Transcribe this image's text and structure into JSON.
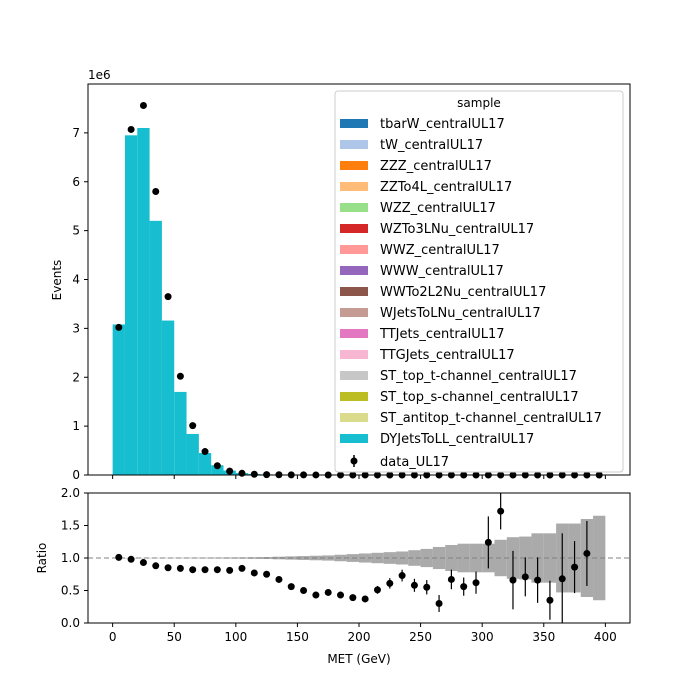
{
  "chart_data": [
    {
      "type": "bar",
      "panel": "main",
      "xlabel": "",
      "ylabel": "Events",
      "offset_label": "1e6",
      "xlim": [
        -20,
        420
      ],
      "ylim": [
        0,
        8
      ],
      "yticks": [
        0,
        1,
        2,
        3,
        4,
        5,
        6,
        7
      ],
      "xticks": [
        0,
        50,
        100,
        150,
        200,
        250,
        300,
        350,
        400
      ],
      "bin_edges": [
        0,
        10,
        20,
        30,
        40,
        50,
        60,
        70,
        80,
        90,
        100,
        110,
        120,
        130,
        140,
        150,
        160,
        170,
        180,
        190,
        200,
        210,
        220,
        230,
        240,
        250,
        260,
        270,
        280,
        290,
        300,
        310,
        320,
        330,
        340,
        350,
        360,
        370,
        380,
        390,
        400
      ],
      "stack_total": [
        3.08,
        6.95,
        7.1,
        5.2,
        3.16,
        1.7,
        0.84,
        0.45,
        0.2,
        0.09,
        0.04,
        0.02,
        0.012,
        0.008,
        0.005,
        0.003,
        0.002,
        0.0015,
        0.001,
        0.0008,
        0.0006,
        0.0005,
        0.0004,
        0.0003,
        0.0002,
        0.0002,
        0.0001,
        0.0001,
        0.0001,
        0.0001,
        0.0001,
        0.0001,
        0.0001,
        0.0001,
        0.0001,
        0.0001,
        0.0001,
        0.0001,
        0.0001,
        0.0001
      ],
      "legend": {
        "title": "sample",
        "placement": "top-right",
        "entries": [
          {
            "name": "tbarW_centralUL17",
            "color": "#1f77b4"
          },
          {
            "name": "tW_centralUL17",
            "color": "#aec7e8"
          },
          {
            "name": "ZZZ_centralUL17",
            "color": "#ff7f0e"
          },
          {
            "name": "ZZTo4L_centralUL17",
            "color": "#ffbb78"
          },
          {
            "name": "WZZ_centralUL17",
            "color": "#98df8a"
          },
          {
            "name": "WZTo3LNu_centralUL17",
            "color": "#d62728"
          },
          {
            "name": "WWZ_centralUL17",
            "color": "#ff9896"
          },
          {
            "name": "WWW_centralUL17",
            "color": "#9467bd"
          },
          {
            "name": "WWTo2L2Nu_centralUL17",
            "color": "#8c564b"
          },
          {
            "name": "WJetsToLNu_centralUL17",
            "color": "#c49c94"
          },
          {
            "name": "TTJets_centralUL17",
            "color": "#e377c2"
          },
          {
            "name": "TTGJets_centralUL17",
            "color": "#f7b6d2"
          },
          {
            "name": "ST_top_t-channel_centralUL17",
            "color": "#c7c7c7"
          },
          {
            "name": "ST_top_s-channel_centralUL17",
            "color": "#bcbd22"
          },
          {
            "name": "ST_antitop_t-channel_centralUL17",
            "color": "#dbdb8d"
          },
          {
            "name": "DYJetsToLL_centralUL17",
            "color": "#17becf"
          }
        ],
        "data_entry": "data_UL17"
      },
      "data_points": {
        "name": "data_UL17",
        "x": [
          5,
          15,
          25,
          35,
          45,
          55,
          65,
          75,
          85,
          95,
          105,
          115,
          125,
          135,
          145,
          155,
          165,
          175,
          185,
          195,
          205,
          215,
          225,
          235,
          245,
          255,
          265,
          275,
          285,
          295,
          305,
          315,
          325,
          335,
          345,
          355,
          365,
          375,
          385,
          395
        ],
        "y": [
          3.02,
          7.07,
          7.56,
          5.8,
          3.65,
          2.02,
          1.01,
          0.48,
          0.19,
          0.08,
          0.035,
          0.015,
          0.008,
          0.005,
          0.003,
          0.002,
          0.001,
          0.0007,
          0.0004,
          0.0003,
          0.0002,
          0.0002,
          0.0002,
          0.0001,
          0.0001,
          0.0001,
          0.0001,
          0.0001,
          0.0001,
          0.0001,
          0.0001,
          0.0001,
          0.0001,
          0.0001,
          0.0001,
          0.0001,
          0.0001,
          0.0001,
          0.0001,
          0.0001
        ]
      }
    },
    {
      "type": "scatter",
      "panel": "ratio",
      "xlabel": "MET (GeV)",
      "ylabel": "Ratio",
      "xlim": [
        -20,
        420
      ],
      "ylim": [
        0,
        2
      ],
      "yticks": [
        "0.0",
        "0.5",
        "1.0",
        "1.5",
        "2.0"
      ],
      "xticks": [
        "0",
        "50",
        "100",
        "150",
        "200",
        "250",
        "300",
        "350",
        "400"
      ],
      "reference_line": 1,
      "bin_edges": [
        0,
        10,
        20,
        30,
        40,
        50,
        60,
        70,
        80,
        90,
        100,
        110,
        120,
        130,
        140,
        150,
        160,
        170,
        180,
        190,
        200,
        210,
        220,
        230,
        240,
        250,
        260,
        270,
        280,
        290,
        300,
        310,
        320,
        330,
        340,
        350,
        360,
        370,
        380,
        390,
        400
      ],
      "mc_uncertainty": [
        0.003,
        0.002,
        0.002,
        0.003,
        0.004,
        0.005,
        0.006,
        0.007,
        0.008,
        0.009,
        0.01,
        0.012,
        0.015,
        0.02,
        0.025,
        0.03,
        0.035,
        0.04,
        0.05,
        0.06,
        0.07,
        0.08,
        0.09,
        0.1,
        0.12,
        0.14,
        0.17,
        0.2,
        0.22,
        0.22,
        0.22,
        0.28,
        0.32,
        0.33,
        0.38,
        0.38,
        0.53,
        0.53,
        0.6,
        0.65
      ],
      "x": [
        5,
        15,
        25,
        35,
        45,
        55,
        65,
        75,
        85,
        95,
        105,
        115,
        125,
        135,
        145,
        155,
        165,
        175,
        185,
        195,
        205,
        215,
        225,
        235,
        245,
        255,
        265,
        275,
        285,
        295,
        305,
        315,
        325,
        335,
        345,
        355,
        365,
        375,
        385
      ],
      "y": [
        1.01,
        0.98,
        0.93,
        0.88,
        0.85,
        0.84,
        0.82,
        0.82,
        0.82,
        0.81,
        0.84,
        0.77,
        0.75,
        0.67,
        0.56,
        0.5,
        0.43,
        0.47,
        0.43,
        0.39,
        0.37,
        0.51,
        0.61,
        0.73,
        0.58,
        0.55,
        0.3,
        0.67,
        0.56,
        0.62,
        1.24,
        1.72,
        0.66,
        0.71,
        0.66,
        0.35,
        0.68,
        0.86,
        1.07
      ],
      "yerr": [
        0.01,
        0.01,
        0.01,
        0.01,
        0.01,
        0.01,
        0.01,
        0.01,
        0.01,
        0.01,
        0.01,
        0.02,
        0.02,
        0.02,
        0.03,
        0.03,
        0.03,
        0.04,
        0.04,
        0.04,
        0.05,
        0.06,
        0.08,
        0.09,
        0.1,
        0.11,
        0.13,
        0.15,
        0.14,
        0.17,
        0.4,
        0.28,
        0.45,
        0.3,
        0.35,
        0.3,
        0.7,
        0.4,
        0.5
      ]
    }
  ]
}
